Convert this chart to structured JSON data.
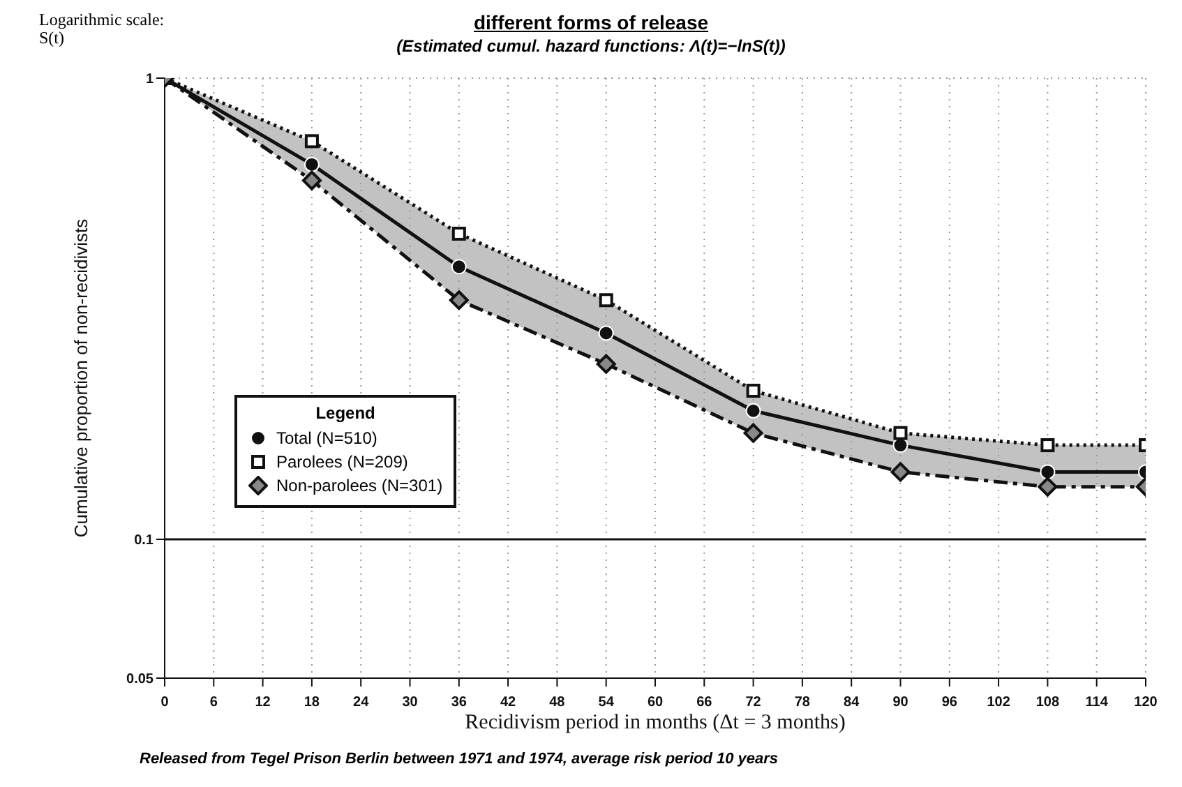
{
  "chart_data": {
    "type": "line",
    "title": "different forms of release",
    "subtitle": "(Estimated cumul. hazard functions: Λ(t)=−lnS(t))",
    "xlabel": "Recidivism period in months (Δt = 3 months)",
    "ylabel": "Cumulative proportion of non-recidivists",
    "legend_title": "Legend",
    "annotations": [
      "Logarithmic scale: S(t)",
      "Released from Tegel Prison Berlin between 1971 and 1974, average risk period 10 years"
    ],
    "x": [
      0,
      18,
      36,
      54,
      72,
      90,
      108,
      120
    ],
    "series": [
      {
        "name": "Total (N=510)",
        "color": "#111111",
        "values": [
          1,
          0.65,
          0.39,
          0.28,
          0.19,
          0.16,
          0.14,
          0.14
        ],
        "marker": "circle",
        "line_style": "solid",
        "lower": [
          1,
          0.6,
          0.33,
          0.24,
          0.17,
          0.14,
          0.13,
          0.13
        ],
        "upper": [
          1,
          0.73,
          0.46,
          0.33,
          0.21,
          0.17,
          0.16,
          0.16
        ]
      },
      {
        "name": "Parolees (N=209)",
        "color": "#111111",
        "values": [
          1,
          0.73,
          0.46,
          0.33,
          0.21,
          0.17,
          0.16,
          0.16
        ],
        "marker": "square",
        "line_style": "dotted"
      },
      {
        "name": "Non-parolees (N=301)",
        "color": "#111111",
        "values": [
          1,
          0.6,
          0.33,
          0.24,
          0.17,
          0.14,
          0.13,
          0.13
        ],
        "marker": "diamond",
        "line_style": "dashed"
      }
    ],
    "log": "y",
    "xlim": [
      0,
      120
    ],
    "ylim": [
      0.05,
      1
    ],
    "xticks": [
      0,
      6,
      12,
      18,
      24,
      30,
      36,
      42,
      48,
      54,
      60,
      66,
      72,
      78,
      84,
      90,
      96,
      102,
      108,
      114,
      120
    ],
    "yticks": [
      {
        "value": 0.05,
        "label": "0.05"
      },
      {
        "value": 0.1,
        "label": "0.1"
      },
      1
    ],
    "ref_lines": [
      {
        "axis": "y",
        "value": 0.1,
        "color": "#111111",
        "line_style": "solid"
      }
    ],
    "grid": true,
    "legend": "left"
  }
}
